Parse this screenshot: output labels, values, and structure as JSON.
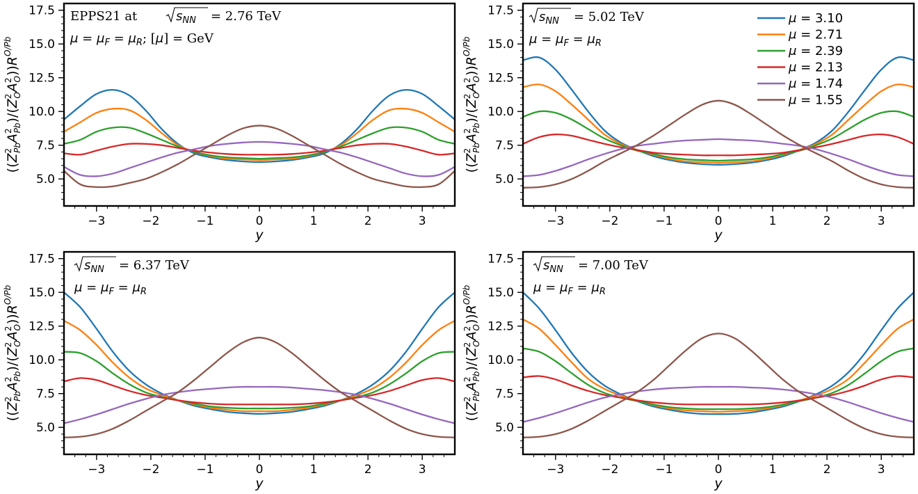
{
  "chart_data": [
    {
      "type": "line",
      "panel": "top-left",
      "title": "",
      "annotation_lines": [
        "EPPS21 at √s_NN = 2.76 TeV",
        "μ = μ_F = μ_R;  [μ] = GeV"
      ],
      "annotation_prefix": "EPPS21 at",
      "annotation_energy": "= 2.76 TeV",
      "annotation_scale": "μ = μ_F = μ_R;",
      "annotation_unit": "[μ] = GeV",
      "xlabel": "y",
      "ylabel": "((Z²_Pb A²_Pb)/(Z²_O A²_O)) R^{O/Pb}",
      "xlim": [
        -3.6,
        3.6
      ],
      "ylim": [
        3.0,
        18.0
      ],
      "x": [
        -3.6,
        -3.3,
        -3.0,
        -2.7,
        -2.4,
        -2.1,
        -1.8,
        -1.5,
        -1.2,
        -0.9,
        -0.6,
        -0.3,
        0.0,
        0.3,
        0.6,
        0.9,
        1.2,
        1.5,
        1.8,
        2.1,
        2.4,
        2.7,
        3.0,
        3.3,
        3.6
      ],
      "series": [
        {
          "name": "μ = 3.10",
          "values": [
            9.4,
            10.4,
            11.3,
            11.6,
            11.2,
            10.1,
            8.7,
            7.6,
            6.9,
            6.6,
            6.4,
            6.3,
            6.25,
            6.3,
            6.4,
            6.6,
            6.9,
            7.6,
            8.7,
            10.1,
            11.2,
            11.6,
            11.3,
            10.4,
            9.4
          ]
        },
        {
          "name": "μ = 2.71",
          "values": [
            8.5,
            9.2,
            9.9,
            10.2,
            10.1,
            9.4,
            8.4,
            7.5,
            7.0,
            6.7,
            6.5,
            6.45,
            6.4,
            6.45,
            6.5,
            6.7,
            7.0,
            7.5,
            8.4,
            9.4,
            10.1,
            10.2,
            9.9,
            9.2,
            8.5
          ]
        },
        {
          "name": "μ = 2.39",
          "values": [
            7.6,
            7.9,
            8.5,
            8.8,
            8.8,
            8.4,
            7.9,
            7.4,
            7.0,
            6.75,
            6.6,
            6.55,
            6.5,
            6.55,
            6.6,
            6.75,
            7.0,
            7.4,
            7.9,
            8.4,
            8.8,
            8.8,
            8.5,
            7.9,
            7.6
          ]
        },
        {
          "name": "μ = 2.13",
          "values": [
            6.9,
            6.8,
            7.1,
            7.4,
            7.6,
            7.6,
            7.5,
            7.3,
            7.1,
            6.95,
            6.85,
            6.8,
            6.8,
            6.8,
            6.85,
            6.95,
            7.1,
            7.3,
            7.5,
            7.6,
            7.6,
            7.4,
            7.1,
            6.8,
            6.9
          ]
        },
        {
          "name": "μ = 1.74",
          "values": [
            5.9,
            5.3,
            5.2,
            5.4,
            5.8,
            6.2,
            6.6,
            6.95,
            7.2,
            7.45,
            7.6,
            7.7,
            7.75,
            7.7,
            7.6,
            7.45,
            7.2,
            6.95,
            6.6,
            6.2,
            5.8,
            5.4,
            5.2,
            5.3,
            5.9
          ]
        },
        {
          "name": "μ = 1.55",
          "values": [
            5.6,
            4.6,
            4.4,
            4.45,
            4.7,
            5.0,
            5.5,
            6.1,
            6.8,
            7.5,
            8.2,
            8.75,
            8.95,
            8.75,
            8.2,
            7.5,
            6.8,
            6.1,
            5.5,
            5.0,
            4.7,
            4.45,
            4.4,
            4.6,
            5.6
          ]
        }
      ]
    },
    {
      "type": "line",
      "panel": "top-right",
      "annotation_energy": "= 5.02 TeV",
      "annotation_scale": "μ = μ_F = μ_R",
      "xlabel": "y",
      "ylabel": "((Z²_Pb A²_Pb)/(Z²_O A²_O)) R^{O/Pb}",
      "xlim": [
        -3.6,
        3.6
      ],
      "ylim": [
        3.0,
        18.0
      ],
      "x": [
        -3.6,
        -3.3,
        -3.0,
        -2.7,
        -2.4,
        -2.1,
        -1.8,
        -1.5,
        -1.2,
        -0.9,
        -0.6,
        -0.3,
        0.0,
        0.3,
        0.6,
        0.9,
        1.2,
        1.5,
        1.8,
        2.1,
        2.4,
        2.7,
        3.0,
        3.3,
        3.6
      ],
      "series": [
        {
          "name": "μ = 3.10",
          "values": [
            13.8,
            14.0,
            13.1,
            11.6,
            10.0,
            8.6,
            7.7,
            7.15,
            6.7,
            6.4,
            6.2,
            6.1,
            6.05,
            6.1,
            6.2,
            6.4,
            6.7,
            7.15,
            7.7,
            8.6,
            10.0,
            11.6,
            13.1,
            14.0,
            13.8
          ]
        },
        {
          "name": "μ = 2.71",
          "values": [
            11.8,
            12.0,
            11.5,
            10.5,
            9.4,
            8.3,
            7.6,
            7.15,
            6.8,
            6.5,
            6.3,
            6.25,
            6.2,
            6.25,
            6.3,
            6.5,
            6.8,
            7.15,
            7.6,
            8.3,
            9.4,
            10.5,
            11.5,
            12.0,
            11.8
          ]
        },
        {
          "name": "μ = 2.39",
          "values": [
            9.6,
            10.0,
            9.9,
            9.4,
            8.7,
            8.0,
            7.5,
            7.1,
            6.85,
            6.6,
            6.45,
            6.4,
            6.35,
            6.4,
            6.45,
            6.6,
            6.85,
            7.1,
            7.5,
            8.0,
            8.7,
            9.4,
            9.9,
            10.0,
            9.6
          ]
        },
        {
          "name": "μ = 2.13",
          "values": [
            7.6,
            8.1,
            8.3,
            8.2,
            7.9,
            7.6,
            7.35,
            7.15,
            6.95,
            6.85,
            6.8,
            6.75,
            6.75,
            6.75,
            6.8,
            6.85,
            6.95,
            7.15,
            7.35,
            7.6,
            7.9,
            8.2,
            8.3,
            8.1,
            7.6
          ]
        },
        {
          "name": "μ = 1.74",
          "values": [
            5.2,
            5.3,
            5.6,
            6.0,
            6.45,
            6.85,
            7.2,
            7.45,
            7.6,
            7.75,
            7.85,
            7.9,
            7.95,
            7.9,
            7.85,
            7.75,
            7.6,
            7.45,
            7.2,
            6.85,
            6.45,
            6.0,
            5.6,
            5.3,
            5.2
          ]
        },
        {
          "name": "μ = 1.55",
          "values": [
            4.35,
            4.4,
            4.6,
            5.0,
            5.6,
            6.3,
            6.9,
            7.5,
            8.2,
            9.0,
            9.8,
            10.5,
            10.8,
            10.5,
            9.8,
            9.0,
            8.2,
            7.5,
            6.9,
            6.3,
            5.6,
            5.0,
            4.6,
            4.4,
            4.35
          ]
        }
      ]
    },
    {
      "type": "line",
      "panel": "bottom-left",
      "annotation_energy": "= 6.37 TeV",
      "annotation_scale": "μ = μ_F = μ_R",
      "xlabel": "y",
      "ylabel": "((Z²_Pb A²_Pb)/(Z²_O A²_O)) R^{O/Pb}",
      "xlim": [
        -3.6,
        3.6
      ],
      "ylim": [
        3.0,
        18.0
      ],
      "x": [
        -3.6,
        -3.3,
        -3.0,
        -2.7,
        -2.4,
        -2.1,
        -1.8,
        -1.5,
        -1.2,
        -0.9,
        -0.6,
        -0.3,
        0.0,
        0.3,
        0.6,
        0.9,
        1.2,
        1.5,
        1.8,
        2.1,
        2.4,
        2.7,
        3.0,
        3.3,
        3.6
      ],
      "series": [
        {
          "name": "μ = 3.10",
          "values": [
            15.0,
            13.9,
            12.3,
            10.6,
            9.2,
            8.2,
            7.5,
            7.0,
            6.6,
            6.35,
            6.15,
            6.05,
            6.0,
            6.05,
            6.15,
            6.35,
            6.6,
            7.0,
            7.5,
            8.2,
            9.2,
            10.6,
            12.3,
            13.9,
            15.0
          ]
        },
        {
          "name": "μ = 2.71",
          "values": [
            12.9,
            12.2,
            11.1,
            9.8,
            8.7,
            7.9,
            7.4,
            7.0,
            6.7,
            6.45,
            6.3,
            6.2,
            6.2,
            6.2,
            6.3,
            6.45,
            6.7,
            7.0,
            7.4,
            7.9,
            8.7,
            9.8,
            11.1,
            12.2,
            12.9
          ]
        },
        {
          "name": "μ = 2.39",
          "values": [
            10.6,
            10.5,
            9.9,
            9.0,
            8.2,
            7.6,
            7.25,
            7.0,
            6.75,
            6.55,
            6.45,
            6.4,
            6.4,
            6.4,
            6.45,
            6.55,
            6.75,
            7.0,
            7.25,
            7.6,
            8.2,
            9.0,
            9.9,
            10.5,
            10.6
          ]
        },
        {
          "name": "μ = 2.13",
          "values": [
            8.4,
            8.65,
            8.5,
            8.1,
            7.7,
            7.4,
            7.2,
            7.0,
            6.85,
            6.75,
            6.7,
            6.7,
            6.7,
            6.7,
            6.7,
            6.75,
            6.85,
            7.0,
            7.2,
            7.4,
            7.7,
            8.1,
            8.5,
            8.65,
            8.4
          ]
        },
        {
          "name": "μ = 1.74",
          "values": [
            5.3,
            5.6,
            5.95,
            6.35,
            6.75,
            7.1,
            7.4,
            7.6,
            7.75,
            7.85,
            7.95,
            8.0,
            8.0,
            8.0,
            7.95,
            7.85,
            7.75,
            7.6,
            7.4,
            7.1,
            6.75,
            6.35,
            5.95,
            5.6,
            5.3
          ]
        },
        {
          "name": "μ = 1.55",
          "values": [
            4.25,
            4.3,
            4.5,
            4.9,
            5.5,
            6.2,
            6.9,
            7.6,
            8.5,
            9.5,
            10.5,
            11.3,
            11.65,
            11.3,
            10.5,
            9.5,
            8.5,
            7.6,
            6.9,
            6.2,
            5.5,
            4.9,
            4.5,
            4.3,
            4.25
          ]
        }
      ]
    },
    {
      "type": "line",
      "panel": "bottom-right",
      "annotation_energy": "= 7.00 TeV",
      "annotation_scale": "μ = μ_F = μ_R",
      "xlabel": "y",
      "ylabel": "((Z²_Pb A²_Pb)/(Z²_O A²_O)) R^{O/Pb}",
      "xlim": [
        -3.6,
        3.6
      ],
      "ylim": [
        3.0,
        18.0
      ],
      "x": [
        -3.6,
        -3.3,
        -3.0,
        -2.7,
        -2.4,
        -2.1,
        -1.8,
        -1.5,
        -1.2,
        -0.9,
        -0.6,
        -0.3,
        0.0,
        0.3,
        0.6,
        0.9,
        1.2,
        1.5,
        1.8,
        2.1,
        2.4,
        2.7,
        3.0,
        3.3,
        3.6
      ],
      "series": [
        {
          "name": "μ = 3.10",
          "values": [
            15.0,
            13.8,
            12.2,
            10.5,
            9.1,
            8.1,
            7.45,
            6.95,
            6.55,
            6.3,
            6.1,
            6.0,
            5.98,
            6.0,
            6.1,
            6.3,
            6.55,
            6.95,
            7.45,
            8.1,
            9.1,
            10.5,
            12.2,
            13.8,
            15.0
          ]
        },
        {
          "name": "μ = 2.71",
          "values": [
            13.0,
            12.3,
            11.1,
            9.8,
            8.6,
            7.85,
            7.35,
            7.0,
            6.65,
            6.4,
            6.25,
            6.2,
            6.15,
            6.2,
            6.25,
            6.4,
            6.65,
            7.0,
            7.35,
            7.85,
            8.6,
            9.8,
            11.1,
            12.3,
            13.0
          ]
        },
        {
          "name": "μ = 2.39",
          "values": [
            10.85,
            10.6,
            9.9,
            9.0,
            8.15,
            7.55,
            7.2,
            6.95,
            6.7,
            6.5,
            6.4,
            6.35,
            6.35,
            6.35,
            6.4,
            6.5,
            6.7,
            6.95,
            7.2,
            7.55,
            8.15,
            9.0,
            9.9,
            10.6,
            10.85
          ]
        },
        {
          "name": "μ = 2.13",
          "values": [
            8.7,
            8.8,
            8.55,
            8.1,
            7.7,
            7.4,
            7.2,
            7.0,
            6.85,
            6.75,
            6.7,
            6.7,
            6.7,
            6.7,
            6.7,
            6.75,
            6.85,
            7.0,
            7.2,
            7.4,
            7.7,
            8.1,
            8.55,
            8.8,
            8.7
          ]
        },
        {
          "name": "μ = 1.74",
          "values": [
            5.4,
            5.7,
            6.05,
            6.45,
            6.85,
            7.2,
            7.45,
            7.65,
            7.8,
            7.9,
            7.95,
            8.0,
            8.0,
            8.0,
            7.95,
            7.9,
            7.8,
            7.65,
            7.45,
            7.2,
            6.85,
            6.45,
            6.05,
            5.7,
            5.4
          ]
        },
        {
          "name": "μ = 1.55",
          "values": [
            4.25,
            4.3,
            4.5,
            4.9,
            5.5,
            6.2,
            6.9,
            7.6,
            8.5,
            9.6,
            10.7,
            11.6,
            11.95,
            11.6,
            10.7,
            9.6,
            8.5,
            7.6,
            6.9,
            6.2,
            5.5,
            4.9,
            4.5,
            4.3,
            4.25
          ]
        }
      ]
    }
  ],
  "legend": {
    "placement": "top-right of top-right panel",
    "entries": [
      "μ = 3.10",
      "μ = 2.71",
      "μ = 2.39",
      "μ = 2.13",
      "μ = 1.74",
      "μ = 1.55"
    ],
    "values": [
      "= 3.10",
      "= 2.71",
      "= 2.39",
      "= 2.13",
      "= 1.74",
      "= 1.55"
    ]
  },
  "colors": [
    "#1f77b4",
    "#ff7f0e",
    "#2ca02c",
    "#d62728",
    "#9467bd",
    "#8c564b"
  ],
  "x_ticks": [
    -3,
    -2,
    -1,
    0,
    1,
    2,
    3
  ],
  "x_tick_labels": [
    "−3",
    "−2",
    "−1",
    "0",
    "1",
    "2",
    "3"
  ],
  "y_ticks": [
    5.0,
    7.5,
    10.0,
    12.5,
    15.0,
    17.5
  ],
  "y_tick_labels": [
    "5.0",
    "7.5",
    "10.0",
    "12.5",
    "15.0",
    "17.5"
  ]
}
